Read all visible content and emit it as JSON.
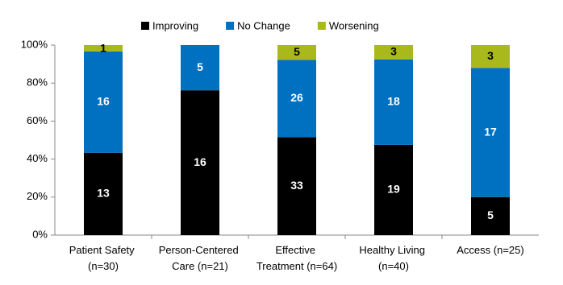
{
  "chart_data": {
    "type": "bar",
    "stacking": "percent",
    "categories": [
      "Patient Safety (n=30)",
      "Person-Centered Care (n=21)",
      "Effective Treatment (n=64)",
      "Healthy Living (n=40)",
      "Access (n=25)"
    ],
    "series": [
      {
        "name": "Improving",
        "color": "#000000",
        "label_color": "#ffffff",
        "values": [
          13,
          16,
          33,
          19,
          5
        ]
      },
      {
        "name": "No Change",
        "color": "#0070c0",
        "label_color": "#ffffff",
        "values": [
          16,
          5,
          26,
          18,
          17
        ]
      },
      {
        "name": "Worsening",
        "color": "#a9b91c",
        "label_color": "#000000",
        "values": [
          1,
          null,
          5,
          3,
          3
        ]
      }
    ],
    "ylim": [
      0,
      100
    ],
    "yticks": [
      {
        "value": 0,
        "label": "0%"
      },
      {
        "value": 20,
        "label": "20%"
      },
      {
        "value": 40,
        "label": "40%"
      },
      {
        "value": 60,
        "label": "60%"
      },
      {
        "value": 80,
        "label": "80%"
      },
      {
        "value": 100,
        "label": "100%"
      }
    ],
    "grid": false,
    "legend": "top"
  }
}
